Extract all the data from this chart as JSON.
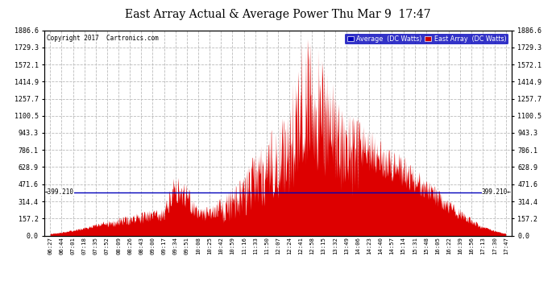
{
  "title": "East Array Actual & Average Power Thu Mar 9  17:47",
  "copyright": "Copyright 2017  Cartronics.com",
  "legend_labels": [
    "Average  (DC Watts)",
    "East Array  (DC Watts)"
  ],
  "legend_colors": [
    "#0000bb",
    "#cc0000"
  ],
  "avg_line_value": 399.21,
  "avg_line_label": "399.210",
  "yticks": [
    0.0,
    157.2,
    314.4,
    471.6,
    628.9,
    786.1,
    943.3,
    1100.5,
    1257.7,
    1414.9,
    1572.1,
    1729.3,
    1886.6
  ],
  "ymax": 1886.6,
  "background_color": "#ffffff",
  "grid_color": "#bbbbbb",
  "fill_color": "#dd0000",
  "line_color": "#0000bb",
  "xtick_labels": [
    "06:27",
    "06:44",
    "07:01",
    "07:18",
    "07:35",
    "07:52",
    "08:09",
    "08:26",
    "08:43",
    "09:00",
    "09:17",
    "09:34",
    "09:51",
    "10:08",
    "10:25",
    "10:42",
    "10:59",
    "11:16",
    "11:33",
    "11:50",
    "12:07",
    "12:24",
    "12:41",
    "12:58",
    "13:15",
    "13:32",
    "13:49",
    "14:06",
    "14:23",
    "14:40",
    "14:57",
    "15:14",
    "15:31",
    "15:48",
    "16:05",
    "16:22",
    "16:39",
    "16:56",
    "17:13",
    "17:30",
    "17:47"
  ],
  "envelope_values": [
    20,
    35,
    55,
    80,
    110,
    140,
    170,
    200,
    220,
    240,
    280,
    600,
    480,
    250,
    280,
    350,
    450,
    550,
    780,
    900,
    1050,
    1200,
    1800,
    1870,
    1600,
    1350,
    1200,
    1100,
    980,
    900,
    820,
    740,
    640,
    540,
    430,
    330,
    240,
    160,
    90,
    50,
    20
  ]
}
